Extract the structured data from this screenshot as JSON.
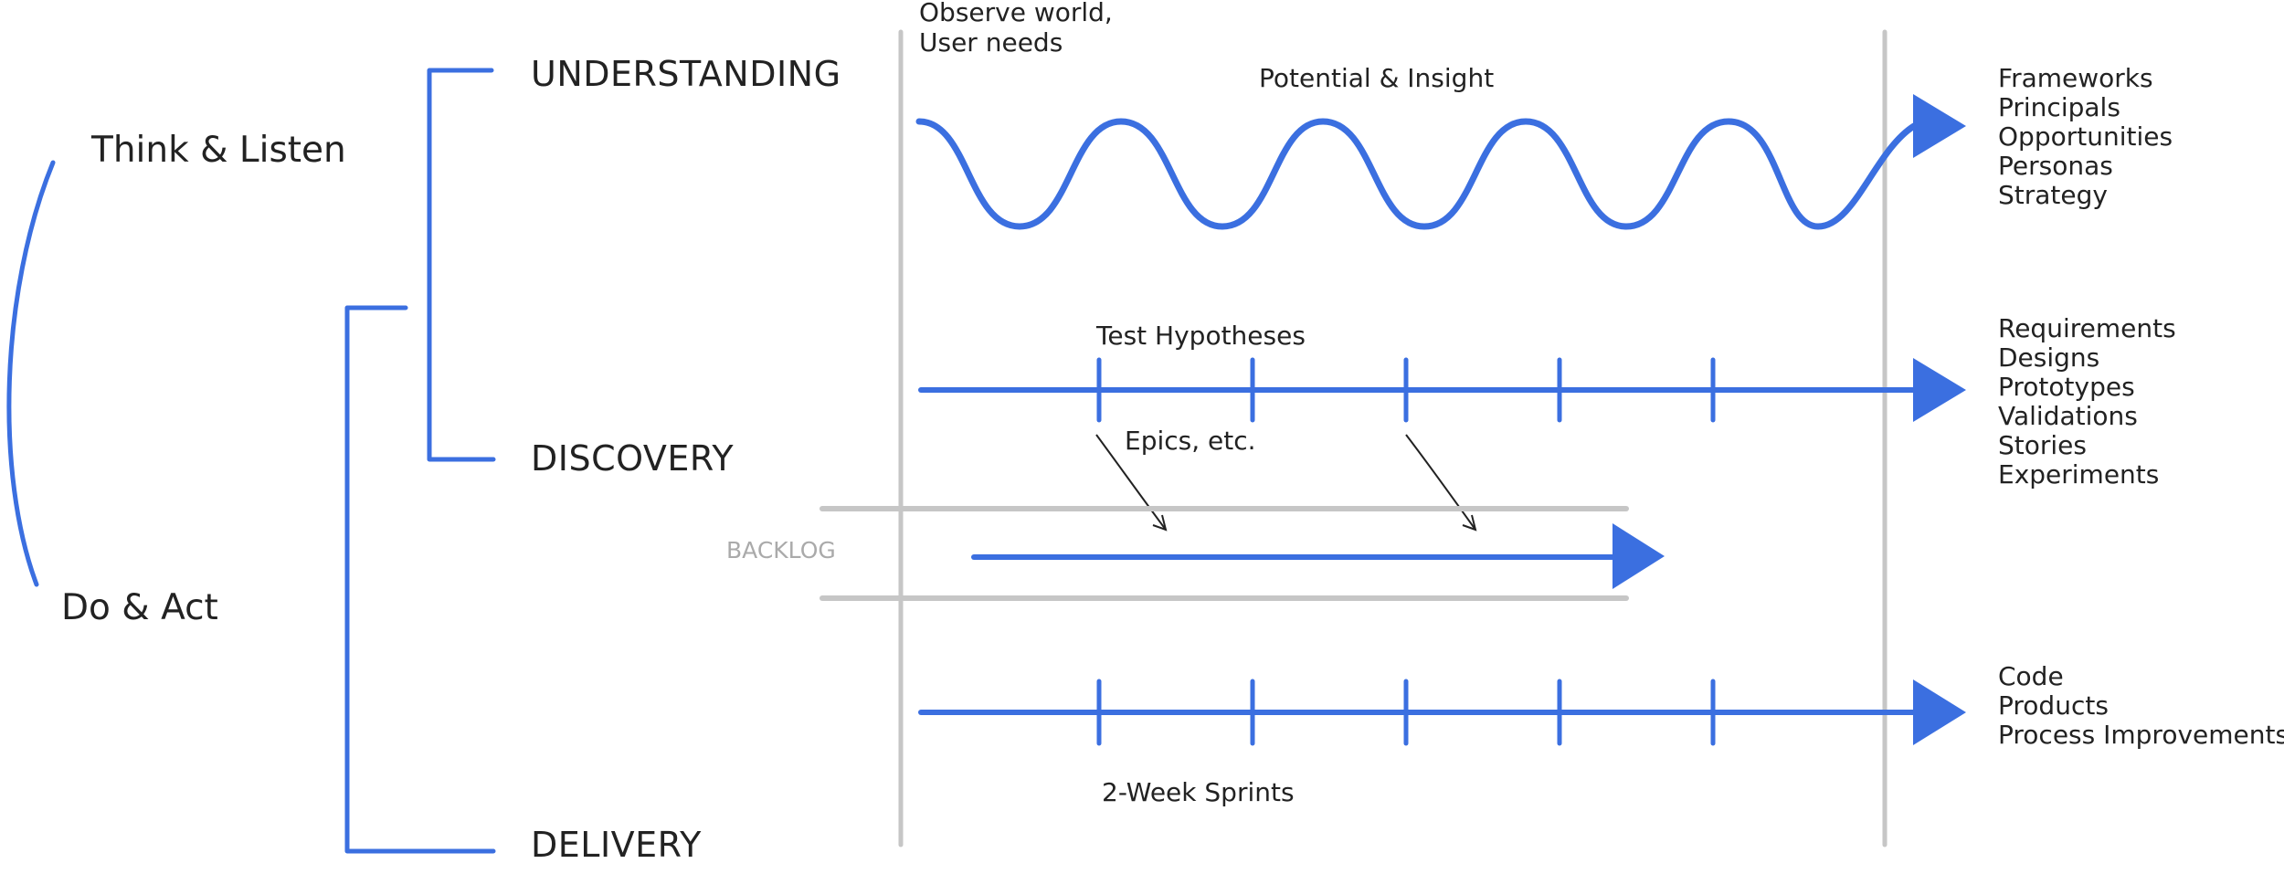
{
  "colors": {
    "accent": "#3b6fe0",
    "rail": "#c6c6c6",
    "text": "#222222",
    "muted": "#aaaaaa"
  },
  "modes": {
    "think": "Think & Listen",
    "act": "Do & Act"
  },
  "phases": {
    "understanding": "UNDERSTANDING",
    "discovery": "DISCOVERY",
    "delivery": "DELIVERY"
  },
  "inputs": {
    "line1": "Observe world,",
    "line2": "User needs"
  },
  "streams": {
    "understanding_label": "Potential & Insight",
    "discovery_label": "Test Hypotheses",
    "epics_label": "Epics, etc.",
    "backlog_label": "BACKLOG",
    "delivery_label": "2-Week Sprints"
  },
  "outputs": {
    "understanding": [
      "Frameworks",
      "Principals",
      "Opportunities",
      "Personas",
      "Strategy"
    ],
    "discovery": [
      "Requirements",
      "Designs",
      "Prototypes",
      "Validations",
      "Stories",
      "Experiments"
    ],
    "delivery": [
      "Code",
      "Products",
      "Process Improvements"
    ]
  }
}
